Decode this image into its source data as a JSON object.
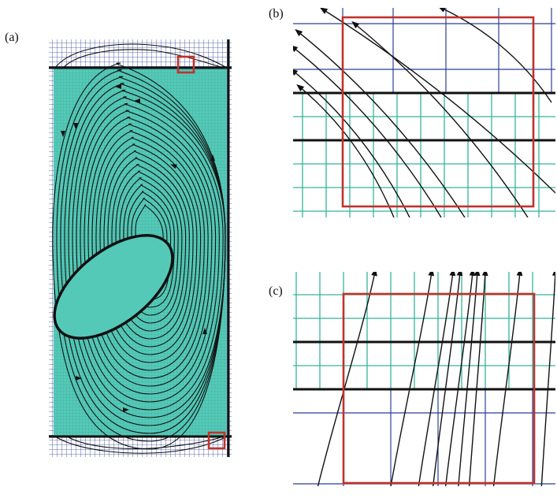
{
  "figure": {
    "panels": [
      {
        "id": "a",
        "label": "(a)"
      },
      {
        "id": "b",
        "label": "(b)"
      },
      {
        "id": "c",
        "label": "(c)"
      }
    ],
    "colors": {
      "fine_mesh": "#2b3f98",
      "coarse_mesh": "#34b59a",
      "fluid_fill": "#55c9b8",
      "streamline": "#111111",
      "highlight_box": "#c0322c"
    }
  }
}
